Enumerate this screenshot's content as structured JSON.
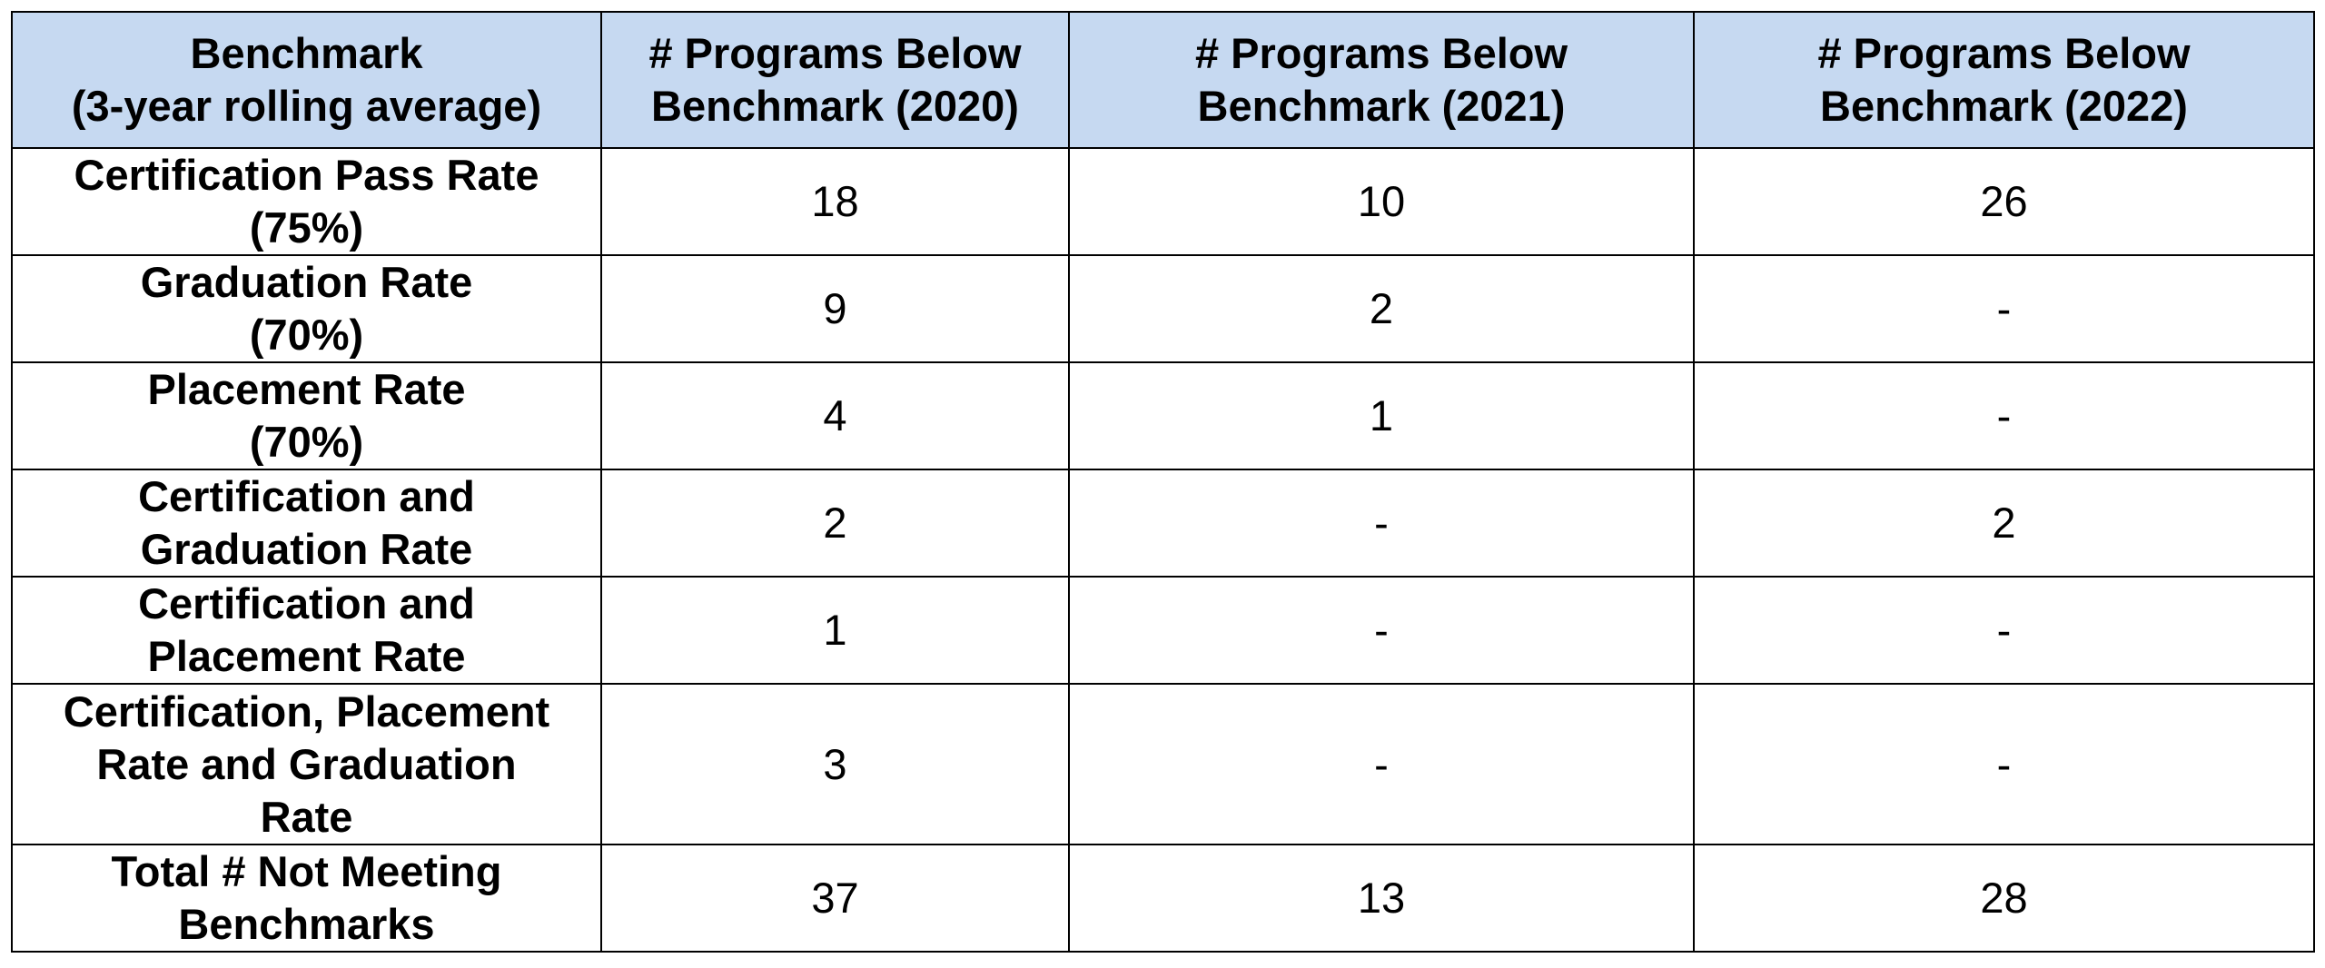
{
  "table": {
    "header": {
      "col0_line1": "Benchmark",
      "col0_line2": "(3-year rolling average)",
      "col1_line1": "# Programs Below",
      "col1_line2": "Benchmark (2020)",
      "col2_line1": "# Programs Below",
      "col2_line2": "Benchmark (2021)",
      "col3_line1": "# Programs Below",
      "col3_line2": "Benchmark (2022)"
    },
    "rows": [
      {
        "label_line1": "Certification Pass Rate",
        "label_line2": "(75%)",
        "label_line3": "",
        "y2020": "18",
        "y2021": "10",
        "y2022": "26"
      },
      {
        "label_line1": "Graduation Rate",
        "label_line2": "(70%)",
        "label_line3": "",
        "y2020": "9",
        "y2021": "2",
        "y2022": "-"
      },
      {
        "label_line1": "Placement Rate",
        "label_line2": "(70%)",
        "label_line3": "",
        "y2020": "4",
        "y2021": "1",
        "y2022": "-"
      },
      {
        "label_line1": "Certification and",
        "label_line2": "Graduation Rate",
        "label_line3": "",
        "y2020": "2",
        "y2021": "-",
        "y2022": "2"
      },
      {
        "label_line1": "Certification and",
        "label_line2": "Placement Rate",
        "label_line3": "",
        "y2020": "1",
        "y2021": "-",
        "y2022": "-"
      },
      {
        "label_line1": "Certification, Placement",
        "label_line2": "Rate and Graduation",
        "label_line3": "Rate",
        "y2020": "3",
        "y2021": "-",
        "y2022": "-"
      },
      {
        "label_line1": "Total # Not Meeting",
        "label_line2": "Benchmarks",
        "label_line3": "",
        "y2020": "37",
        "y2021": "13",
        "y2022": "28"
      }
    ]
  },
  "colors": {
    "header_background": "#c6d9f1",
    "border": "#000000"
  }
}
